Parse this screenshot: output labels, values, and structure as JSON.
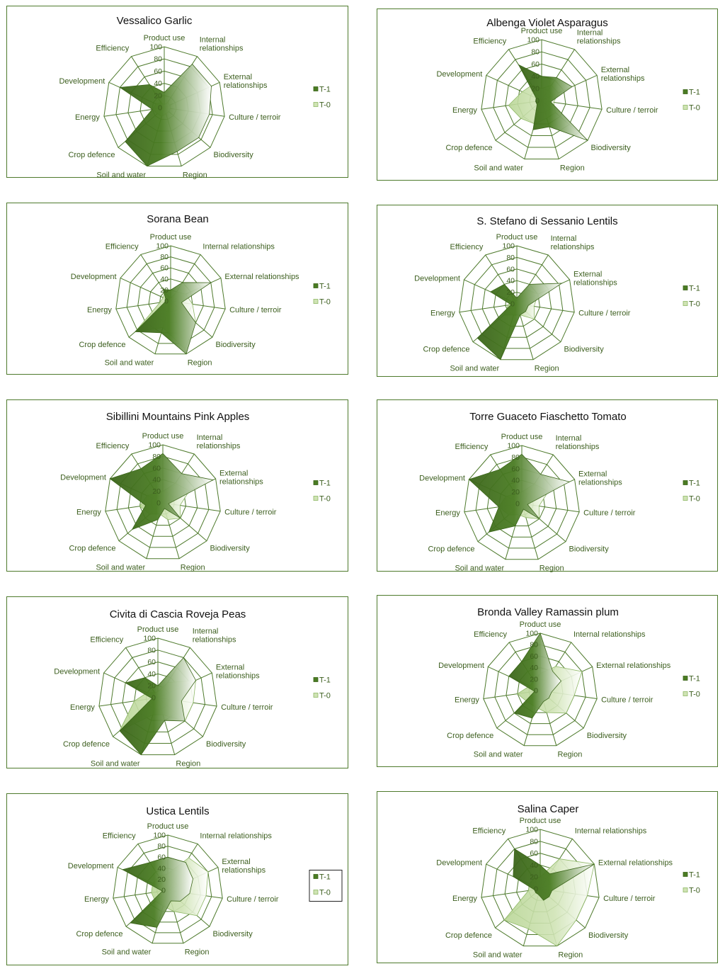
{
  "colors": {
    "frame": "#4e7a2c",
    "grid": "#4e7a2c",
    "t1_fill": "#4a7c23",
    "t1_dark": "#3b651a",
    "t0_fill": "#cfe3b4",
    "t0_edge": "#8fb866",
    "text": "#3c5e1e"
  },
  "legend": [
    "T-1",
    "T-0"
  ],
  "chart_data": [
    {
      "type": "radar",
      "title": "Vessalico Garlic",
      "axes": [
        "Product use",
        "Internal relationships",
        "External relationships",
        "Culture / terroir",
        "Biodiversity",
        "Region",
        "Soil and water",
        "Crop defence",
        "Energy",
        "Development",
        "Efficiency"
      ],
      "axis_label_lines": [
        [
          "Product use"
        ],
        [
          "Internal",
          "relationships"
        ],
        [
          "External",
          "relationships"
        ],
        [
          "Culture / terroir"
        ],
        [
          "Biodiversity"
        ],
        [
          "Region"
        ],
        [
          "Soil and water"
        ],
        [
          "Crop defence"
        ],
        [
          "Energy"
        ],
        [
          "Development"
        ],
        [
          "Efficiency"
        ]
      ],
      "ticks": [
        "0",
        "20",
        "40",
        "60",
        "80",
        "100"
      ],
      "rlim": [
        0,
        100
      ],
      "series": [
        {
          "name": "T-1",
          "values": [
            25,
            85,
            85,
            75,
            75,
            75,
            100,
            85,
            20,
            80,
            45
          ]
        },
        {
          "name": "T-0",
          "values": [
            5,
            10,
            10,
            10,
            10,
            10,
            15,
            15,
            20,
            15,
            10
          ]
        }
      ]
    },
    {
      "type": "radar",
      "title": "Albenga Violet Asparagus",
      "axes": [
        "Product use",
        "Internal relationships",
        "External relationships",
        "Culture / terroir",
        "Biodiversity",
        "Region",
        "Soil and water",
        "Crop defence",
        "Energy",
        "Development",
        "Efficiency"
      ],
      "axis_label_lines": [
        [
          "Product use"
        ],
        [
          "Internal",
          "relationships"
        ],
        [
          "External",
          "relationships"
        ],
        [
          "Culture / terroir"
        ],
        [
          "Biodiversity"
        ],
        [
          "Region"
        ],
        [
          "Soil and water"
        ],
        [
          "Crop defence"
        ],
        [
          "Energy"
        ],
        [
          "Development"
        ],
        [
          "Efficiency"
        ]
      ],
      "ticks": [
        "0",
        "20",
        "40",
        "60",
        "80",
        "100"
      ],
      "rlim": [
        0,
        100
      ],
      "series": [
        {
          "name": "T-1",
          "values": [
            40,
            45,
            55,
            15,
            100,
            45,
            50,
            10,
            10,
            10,
            70
          ]
        },
        {
          "name": "T-0",
          "values": [
            20,
            30,
            30,
            20,
            30,
            30,
            40,
            45,
            55,
            35,
            30
          ]
        }
      ]
    },
    {
      "type": "radar",
      "title": "Sorana Bean",
      "axes": [
        "Product use",
        "Internal relationships",
        "External relationships",
        "Culture / terroir",
        "Biodiversity",
        "Region",
        "Soil and water",
        "Crop defence",
        "Energy",
        "Development",
        "Efficiency"
      ],
      "axis_label_lines": [
        [
          "Product use"
        ],
        [
          "Internal relationships"
        ],
        [
          "External relationships"
        ],
        [
          "Culture / terroir"
        ],
        [
          "Biodiversity"
        ],
        [
          "Region"
        ],
        [
          "Soil and water"
        ],
        [
          "Crop defence"
        ],
        [
          "Energy"
        ],
        [
          "Development"
        ],
        [
          "Efficiency"
        ]
      ],
      "ticks": [
        "0",
        "20",
        "40",
        "60",
        "80",
        "100"
      ],
      "rlim": [
        0,
        100
      ],
      "series": [
        {
          "name": "T-1",
          "values": [
            20,
            40,
            80,
            20,
            60,
            100,
            60,
            85,
            10,
            10,
            25
          ]
        },
        {
          "name": "T-0",
          "values": [
            5,
            20,
            30,
            40,
            60,
            90,
            50,
            85,
            20,
            15,
            20
          ]
        }
      ]
    },
    {
      "type": "radar",
      "title": "S. Stefano di Sessanio Lentils",
      "axes": [
        "Product use",
        "Internal relationships",
        "External relationships",
        "Culture / terroir",
        "Biodiversity",
        "Region",
        "Soil and water",
        "Crop defence",
        "Energy",
        "Development",
        "Efficiency"
      ],
      "axis_label_lines": [
        [
          "Product use"
        ],
        [
          "Internal",
          "relationships"
        ],
        [
          "External",
          "relationships"
        ],
        [
          "Culture / terroir"
        ],
        [
          "Biodiversity"
        ],
        [
          "Region"
        ],
        [
          "Soil and water"
        ],
        [
          "Crop defence"
        ],
        [
          "Energy"
        ],
        [
          "Development"
        ],
        [
          "Efficiency"
        ]
      ],
      "ticks": [
        "0",
        "20",
        "40",
        "60",
        "80",
        "100"
      ],
      "rlim": [
        0,
        100
      ],
      "series": [
        {
          "name": "T-1",
          "values": [
            10,
            40,
            85,
            20,
            20,
            20,
            100,
            90,
            10,
            50,
            40
          ]
        },
        {
          "name": "T-0",
          "values": [
            5,
            30,
            40,
            30,
            40,
            20,
            20,
            30,
            15,
            10,
            10
          ]
        }
      ]
    },
    {
      "type": "radar",
      "title": "Sibillini Mountains Pink Apples",
      "axes": [
        "Product use",
        "Internal relationships",
        "External relationships",
        "Culture / terroir",
        "Biodiversity",
        "Region",
        "Soil and water",
        "Crop defence",
        "Energy",
        "Development",
        "Efficiency"
      ],
      "axis_label_lines": [
        [
          "Product use"
        ],
        [
          "Internal",
          "relationships"
        ],
        [
          "External",
          "relationships"
        ],
        [
          "Culture / terroir"
        ],
        [
          "Biodiversity"
        ],
        [
          "Region"
        ],
        [
          "Soil and water"
        ],
        [
          "Crop defence"
        ],
        [
          "Energy"
        ],
        [
          "Development"
        ],
        [
          "Efficiency"
        ]
      ],
      "ticks": [
        "0",
        "20",
        "40",
        "60",
        "80",
        "100"
      ],
      "rlim": [
        0,
        100
      ],
      "series": [
        {
          "name": "T-1",
          "values": [
            85,
            60,
            95,
            10,
            40,
            10,
            30,
            70,
            30,
            100,
            70
          ]
        },
        {
          "name": "T-0",
          "values": [
            20,
            40,
            50,
            30,
            40,
            30,
            20,
            30,
            40,
            30,
            20
          ]
        }
      ]
    },
    {
      "type": "radar",
      "title": "Torre Guaceto Fiaschetto Tomato",
      "axes": [
        "Product use",
        "Internal relationships",
        "External relationships",
        "Culture / terroir",
        "Biodiversity",
        "Region",
        "Soil and water",
        "Crop defence",
        "Energy",
        "Development",
        "Efficiency"
      ],
      "axis_label_lines": [
        [
          "Product use"
        ],
        [
          "Internal",
          "relationships"
        ],
        [
          "External",
          "relationships"
        ],
        [
          "Culture / terroir"
        ],
        [
          "Biodiversity"
        ],
        [
          "Region"
        ],
        [
          "Soil and water"
        ],
        [
          "Crop defence"
        ],
        [
          "Energy"
        ],
        [
          "Development"
        ],
        [
          "Efficiency"
        ]
      ],
      "ticks": [
        "0",
        "20",
        "40",
        "60",
        "80",
        "100"
      ],
      "rlim": [
        0,
        100
      ],
      "series": [
        {
          "name": "T-1",
          "values": [
            85,
            60,
            90,
            10,
            40,
            10,
            40,
            75,
            40,
            100,
            70
          ]
        },
        {
          "name": "T-0",
          "values": [
            20,
            40,
            50,
            30,
            40,
            25,
            20,
            30,
            40,
            30,
            20
          ]
        }
      ]
    },
    {
      "type": "radar",
      "title": "Civita di Cascia Roveja Peas",
      "axes": [
        "Product use",
        "Internal relationships",
        "External relationships",
        "Culture / terroir",
        "Biodiversity",
        "Region",
        "Soil and water",
        "Crop defence",
        "Energy",
        "Development",
        "Efficiency"
      ],
      "axis_label_lines": [
        [
          "Product use"
        ],
        [
          "Internal",
          "relationships"
        ],
        [
          "External",
          "relationships"
        ],
        [
          "Culture / terroir"
        ],
        [
          "Biodiversity"
        ],
        [
          "Region"
        ],
        [
          "Soil and water"
        ],
        [
          "Crop defence"
        ],
        [
          "Energy"
        ],
        [
          "Development"
        ],
        [
          "Efficiency"
        ]
      ],
      "ticks": [
        "0",
        "20",
        "40",
        "60",
        "80",
        "100"
      ],
      "rlim": [
        0,
        100
      ],
      "series": [
        {
          "name": "T-1",
          "values": [
            20,
            80,
            70,
            40,
            60,
            40,
            100,
            85,
            10,
            60,
            40
          ]
        },
        {
          "name": "T-0",
          "values": [
            10,
            30,
            70,
            60,
            60,
            30,
            30,
            85,
            40,
            20,
            10
          ]
        }
      ]
    },
    {
      "type": "radar",
      "title": "Bronda Valley Ramassin plum",
      "axes": [
        "Product use",
        "Internal relationships",
        "External relationships",
        "Culture / terroir",
        "Biodiversity",
        "Region",
        "Soil and water",
        "Crop defence",
        "Energy",
        "Development",
        "Efficiency"
      ],
      "axis_label_lines": [
        [
          "Product use"
        ],
        [
          "Internal relationships"
        ],
        [
          "External relationships"
        ],
        [
          "Culture / terroir"
        ],
        [
          "Biodiversity"
        ],
        [
          "Region"
        ],
        [
          "Soil and water"
        ],
        [
          "Crop defence"
        ],
        [
          "Energy"
        ],
        [
          "Development"
        ],
        [
          "Efficiency"
        ]
      ],
      "ticks": [
        "0",
        "20",
        "40",
        "60",
        "80",
        "100"
      ],
      "rlim": [
        0,
        100
      ],
      "series": [
        {
          "name": "T-1",
          "values": [
            100,
            40,
            40,
            20,
            20,
            20,
            50,
            60,
            10,
            60,
            60
          ]
        },
        {
          "name": "T-0",
          "values": [
            30,
            50,
            80,
            60,
            60,
            40,
            30,
            30,
            40,
            20,
            20
          ]
        }
      ]
    },
    {
      "type": "radar",
      "title": "Ustica Lentils",
      "axes": [
        "Product use",
        "Internal relationships",
        "External relationships",
        "Culture / terroir",
        "Biodiversity",
        "Region",
        "Soil and water",
        "Crop defence",
        "Energy",
        "Development",
        "Efficiency"
      ],
      "axis_label_lines": [
        [
          "Product use"
        ],
        [
          "Internal relationships"
        ],
        [
          "External",
          "relationships"
        ],
        [
          "Culture / terroir"
        ],
        [
          "Biodiversity"
        ],
        [
          "Region"
        ],
        [
          "Soil and water"
        ],
        [
          "Crop defence"
        ],
        [
          "Energy"
        ],
        [
          "Development"
        ],
        [
          "Efficiency"
        ]
      ],
      "ticks": [
        "0",
        "20",
        "40",
        "60",
        "80",
        "100"
      ],
      "rlim": [
        0,
        100
      ],
      "series": [
        {
          "name": "T-1",
          "values": [
            60,
            60,
            50,
            40,
            30,
            20,
            70,
            90,
            10,
            90,
            60
          ]
        },
        {
          "name": "T-0",
          "values": [
            30,
            70,
            80,
            70,
            70,
            40,
            30,
            30,
            30,
            30,
            30
          ]
        }
      ]
    },
    {
      "type": "radar",
      "title": "Salina Caper",
      "axes": [
        "Product use",
        "Internal relationships",
        "External relationships",
        "Culture / terroir",
        "Biodiversity",
        "Region",
        "Soil and water",
        "Crop defence",
        "Energy",
        "Development",
        "Efficiency"
      ],
      "axis_label_lines": [
        [
          "Product use"
        ],
        [
          "Internal relationships"
        ],
        [
          "External relationships"
        ],
        [
          "Culture / terroir"
        ],
        [
          "Biodiversity"
        ],
        [
          "Region"
        ],
        [
          "Soil and water"
        ],
        [
          "Crop defence"
        ],
        [
          "Energy"
        ],
        [
          "Development"
        ],
        [
          "Efficiency"
        ]
      ],
      "ticks": [
        "0",
        "20",
        "40",
        "60",
        "80",
        "100"
      ],
      "rlim": [
        0,
        100
      ],
      "series": [
        {
          "name": "T-1",
          "values": [
            40,
            30,
            100,
            20,
            20,
            20,
            10,
            10,
            10,
            50,
            80
          ]
        },
        {
          "name": "T-0",
          "values": [
            20,
            60,
            100,
            80,
            80,
            100,
            70,
            80,
            20,
            20,
            20
          ]
        }
      ]
    }
  ]
}
